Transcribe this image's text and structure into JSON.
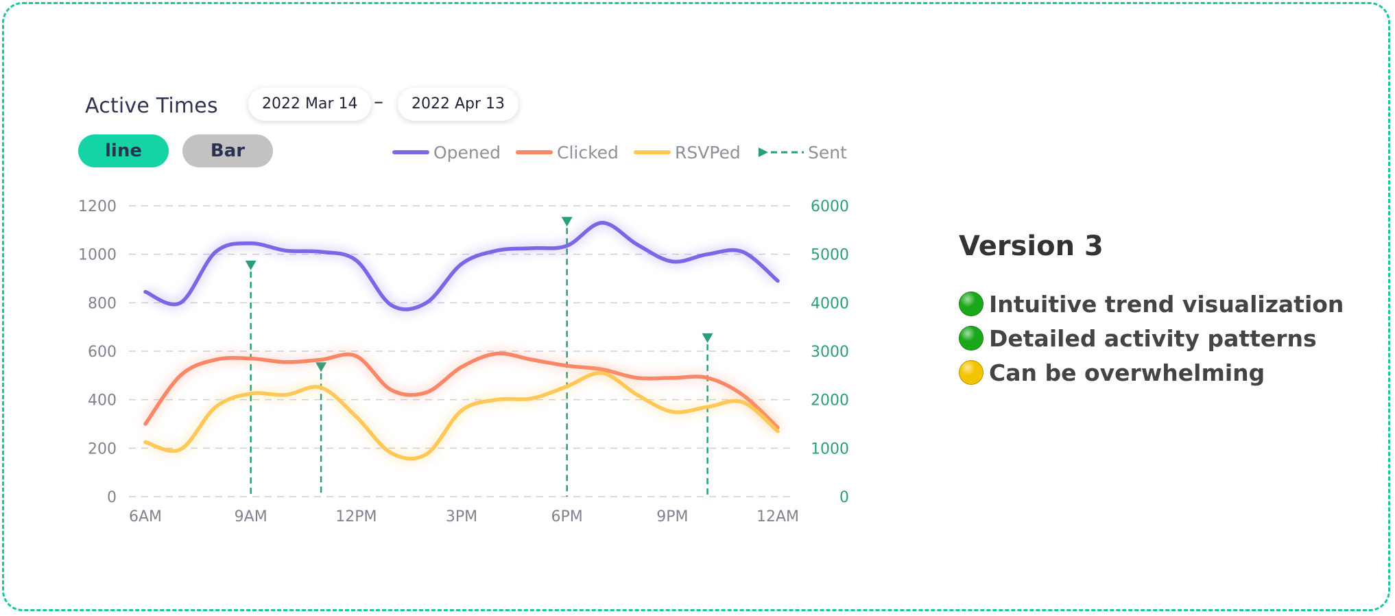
{
  "header": {
    "title": "Active Times",
    "date_start": "2022 Mar 14",
    "date_separator": "–",
    "date_end": "2022 Apr 13"
  },
  "toggle": {
    "line_label": "line",
    "bar_label": "Bar",
    "active": "line"
  },
  "legend": [
    "Opened",
    "Clicked",
    "RSVPed",
    "Sent"
  ],
  "colors": {
    "opened": "#7a67e6",
    "clicked": "#fa8668",
    "rsvped": "#fdc855",
    "sent": "#2a9e7c",
    "border": "#14c9a0",
    "active_toggle": "#14d3a5",
    "inactive_toggle": "#c2c2c2",
    "positive_dot": "#1aa81a",
    "caution_dot": "#f4c400"
  },
  "chart_data": {
    "type": "line",
    "x_ticks": [
      "6AM",
      "9AM",
      "12PM",
      "3PM",
      "6PM",
      "9PM",
      "12AM"
    ],
    "x_hours_range": [
      6,
      24
    ],
    "y_left_ticks": [
      "0",
      "200",
      "400",
      "600",
      "800",
      "1000",
      "1200"
    ],
    "y_left_range": [
      0,
      1200
    ],
    "y_right_ticks": [
      "0",
      "1000",
      "2000",
      "3000",
      "4000",
      "5000",
      "6000"
    ],
    "y_right_range": [
      0,
      6000
    ],
    "grid": "horizontal dashed",
    "legend_position": "top-right",
    "series": [
      {
        "name": "Opened",
        "axis": "left",
        "color": "#7a67e6",
        "points": [
          [
            6,
            845
          ],
          [
            7,
            800
          ],
          [
            8,
            1010
          ],
          [
            9,
            1045
          ],
          [
            10,
            1015
          ],
          [
            11,
            1010
          ],
          [
            12,
            975
          ],
          [
            13,
            790
          ],
          [
            14,
            800
          ],
          [
            15,
            960
          ],
          [
            16,
            1015
          ],
          [
            17,
            1025
          ],
          [
            18,
            1035
          ],
          [
            19,
            1130
          ],
          [
            20,
            1040
          ],
          [
            21,
            970
          ],
          [
            22,
            1000
          ],
          [
            23,
            1010
          ],
          [
            24,
            890
          ]
        ]
      },
      {
        "name": "Clicked",
        "axis": "left",
        "color": "#fa8668",
        "points": [
          [
            6,
            300
          ],
          [
            7,
            500
          ],
          [
            8,
            565
          ],
          [
            9,
            570
          ],
          [
            10,
            555
          ],
          [
            11,
            565
          ],
          [
            12,
            580
          ],
          [
            13,
            440
          ],
          [
            14,
            430
          ],
          [
            15,
            535
          ],
          [
            16,
            590
          ],
          [
            17,
            565
          ],
          [
            18,
            540
          ],
          [
            19,
            525
          ],
          [
            20,
            490
          ],
          [
            21,
            490
          ],
          [
            22,
            490
          ],
          [
            23,
            420
          ],
          [
            24,
            285
          ]
        ]
      },
      {
        "name": "RSVPed",
        "axis": "left",
        "color": "#fdc855",
        "points": [
          [
            6,
            225
          ],
          [
            7,
            195
          ],
          [
            8,
            370
          ],
          [
            9,
            425
          ],
          [
            10,
            420
          ],
          [
            11,
            450
          ],
          [
            12,
            330
          ],
          [
            13,
            180
          ],
          [
            14,
            175
          ],
          [
            15,
            355
          ],
          [
            16,
            400
          ],
          [
            17,
            405
          ],
          [
            18,
            455
          ],
          [
            19,
            510
          ],
          [
            20,
            420
          ],
          [
            21,
            350
          ],
          [
            22,
            370
          ],
          [
            23,
            390
          ],
          [
            24,
            270
          ]
        ]
      },
      {
        "name": "Sent",
        "axis": "right",
        "type": "event-markers",
        "color": "#2a9e7c",
        "points": [
          [
            9,
            4700
          ],
          [
            11,
            2600
          ],
          [
            18,
            5600
          ],
          [
            22,
            3200
          ]
        ]
      }
    ]
  },
  "summary": {
    "title": "Version 3",
    "points": [
      {
        "text": "Intuitive trend visualization",
        "status": "positive"
      },
      {
        "text": "Detailed activity patterns",
        "status": "positive"
      },
      {
        "text": "Can be overwhelming",
        "status": "caution"
      }
    ]
  }
}
